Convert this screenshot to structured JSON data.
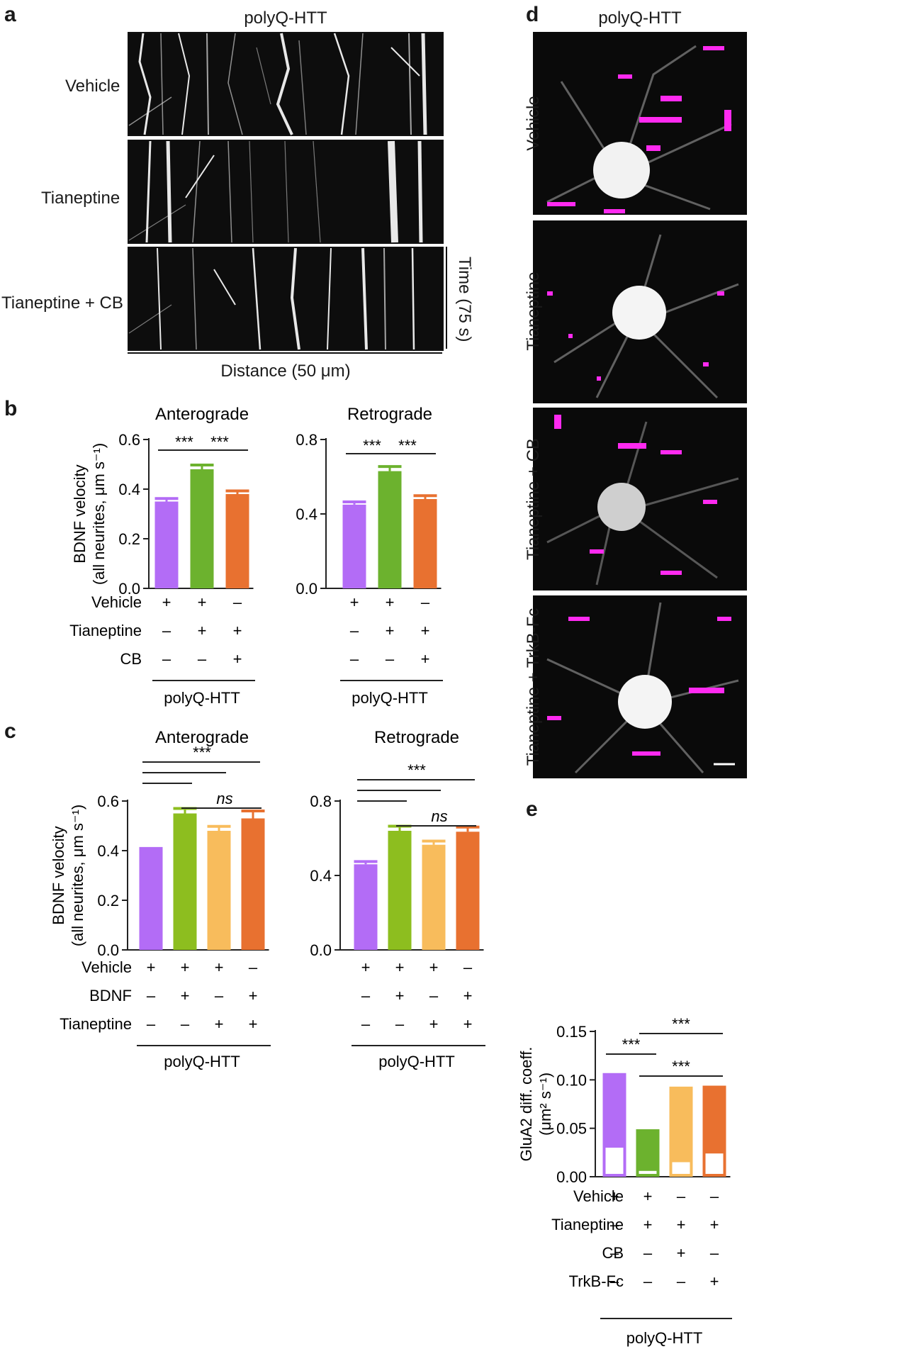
{
  "colors": {
    "purple": "#b36cf6",
    "green": "#6cb22e",
    "orange": "#e87130",
    "light_green": "#8dbe1f",
    "light_orange": "#f8bc5c",
    "magenta": "#ff2af0"
  },
  "panel_a": {
    "letter": "a",
    "title": "polyQ-HTT",
    "rows": [
      "Vehicle",
      "Tianeptine",
      "Tianeptine + CB"
    ],
    "time_label": "Time (75 s)",
    "distance_label": "Distance (50 μm)"
  },
  "panel_d": {
    "letter": "d",
    "title": "polyQ-HTT",
    "rows": [
      "Vehicle",
      "Tianeptine",
      "Tianeptine + CB",
      "Tianeptine + TrkB-Fc"
    ]
  },
  "chart_data": [
    {
      "id": "b_anterograde",
      "panel": "b",
      "type": "bar",
      "title": "Anterograde",
      "ylabel_line1": "BDNF velocity",
      "ylabel_line2": "(all neurites, μm s⁻¹)",
      "ylim": [
        0,
        0.6
      ],
      "yticks": [
        "0.0",
        "0.2",
        "0.4",
        "0.6"
      ],
      "categories": [
        "Vehicle",
        "Tianeptine",
        "Tianeptine + CB"
      ],
      "values": [
        0.35,
        0.48,
        0.38
      ],
      "errors": [
        0.012,
        0.017,
        0.013
      ],
      "colors": [
        "purple",
        "green",
        "orange"
      ],
      "treatment_labels": [
        "Vehicle",
        "Tianeptine",
        "CB"
      ],
      "treatment_signs": [
        [
          "+",
          "+",
          "–"
        ],
        [
          "–",
          "+",
          "+"
        ],
        [
          "–",
          "–",
          "+"
        ]
      ],
      "group_label": "polyQ-HTT",
      "significance": [
        "***",
        "***"
      ]
    },
    {
      "id": "b_retrograde",
      "panel": "b",
      "type": "bar",
      "title": "Retrograde",
      "ylim": [
        0,
        0.8
      ],
      "yticks": [
        "0.0",
        "0.4",
        "0.8"
      ],
      "categories": [
        "Vehicle",
        "Tianeptine",
        "Tianeptine + CB"
      ],
      "values": [
        0.45,
        0.63,
        0.48
      ],
      "errors": [
        0.015,
        0.025,
        0.018
      ],
      "colors": [
        "purple",
        "green",
        "orange"
      ],
      "treatment_signs": [
        [
          "+",
          "+",
          "–"
        ],
        [
          "–",
          "+",
          "+"
        ],
        [
          "–",
          "–",
          "+"
        ]
      ],
      "group_label": "polyQ-HTT",
      "significance": [
        "***",
        "***"
      ]
    },
    {
      "id": "c_anterograde",
      "panel": "c",
      "type": "bar",
      "title": "Anterograde",
      "ylabel_line1": "BDNF velocity",
      "ylabel_line2": "(all neurites, μm s⁻¹)",
      "ylim": [
        0,
        0.6
      ],
      "yticks": [
        "0.0",
        "0.2",
        "0.4",
        "0.6"
      ],
      "categories": [
        "Vehicle",
        "BDNF",
        "Tianeptine",
        "BDNF + Tianeptine"
      ],
      "values": [
        0.405,
        0.55,
        0.48,
        0.53
      ],
      "errors": [
        0.004,
        0.02,
        0.018,
        0.03
      ],
      "colors": [
        "purple",
        "light_green",
        "light_orange",
        "orange"
      ],
      "treatment_labels": [
        "Vehicle",
        "BDNF",
        "Tianeptine"
      ],
      "treatment_signs": [
        [
          "+",
          "+",
          "+",
          "–"
        ],
        [
          "–",
          "+",
          "–",
          "+"
        ],
        [
          "–",
          "–",
          "+",
          "+"
        ]
      ],
      "group_label": "polyQ-HTT",
      "significance": [
        "***",
        "ns"
      ]
    },
    {
      "id": "c_retrograde",
      "panel": "c",
      "type": "bar",
      "title": "Retrograde",
      "ylim": [
        0,
        0.8
      ],
      "yticks": [
        "0.0",
        "0.4",
        "0.8"
      ],
      "categories": [
        "Vehicle",
        "BDNF",
        "Tianeptine",
        "BDNF + Tianeptine"
      ],
      "values": [
        0.46,
        0.64,
        0.565,
        0.635
      ],
      "errors": [
        0.015,
        0.025,
        0.02,
        0.025
      ],
      "colors": [
        "purple",
        "light_green",
        "light_orange",
        "orange"
      ],
      "treatment_signs": [
        [
          "+",
          "+",
          "+",
          "–"
        ],
        [
          "–",
          "+",
          "–",
          "+"
        ],
        [
          "–",
          "–",
          "+",
          "+"
        ]
      ],
      "group_label": "polyQ-HTT",
      "significance": [
        "***",
        "ns"
      ]
    },
    {
      "id": "e",
      "panel": "e",
      "type": "bar",
      "ylabel_line1": "GluA2 diff. coeff.",
      "ylabel_line2": "(μm² s⁻¹)",
      "ylim": [
        0,
        0.15
      ],
      "yticks": [
        "0.00",
        "0.05",
        "0.10",
        "0.15"
      ],
      "categories": [
        "Vehicle",
        "Tianeptine",
        "Tianeptine + CB",
        "Tianeptine + TrkB-Fc"
      ],
      "values": [
        0.107,
        0.049,
        0.093,
        0.094
      ],
      "inner_values": [
        0.03,
        0.006,
        0.015,
        0.024
      ],
      "colors": [
        "purple",
        "green",
        "light_orange",
        "orange"
      ],
      "treatment_labels": [
        "Vehicle",
        "Tianeptine",
        "CB",
        "TrkB-Fc"
      ],
      "treatment_signs": [
        [
          "+",
          "+",
          "–",
          "–"
        ],
        [
          "–",
          "+",
          "+",
          "+"
        ],
        [
          "–",
          "–",
          "+",
          "–"
        ],
        [
          "–",
          "–",
          "–",
          "+"
        ]
      ],
      "group_label": "polyQ-HTT",
      "significance": [
        "***",
        "***",
        "***"
      ]
    }
  ]
}
